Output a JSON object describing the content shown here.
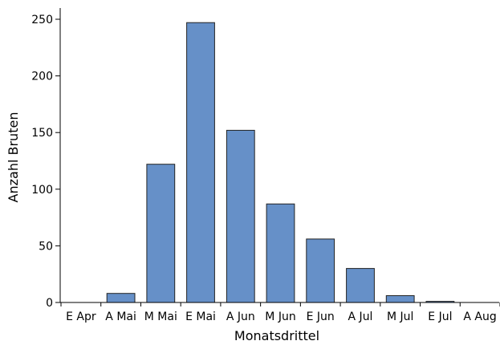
{
  "chart_data": {
    "type": "bar",
    "categories": [
      "E Apr",
      "A Mai",
      "M Mai",
      "E Mai",
      "A Jun",
      "M Jun",
      "E Jun",
      "A Jul",
      "M Jul",
      "E Jul",
      "A Aug"
    ],
    "values": [
      0,
      8,
      122,
      247,
      152,
      87,
      56,
      30,
      6,
      1,
      0
    ],
    "xlabel": "Monatsdrittel",
    "ylabel": "Anzahl Bruten",
    "ylim": [
      0,
      250
    ],
    "yticks": [
      0,
      50,
      100,
      150,
      200,
      250
    ],
    "grid": false,
    "colors": {
      "bar": "#6690c8",
      "bar_edge": "#222222"
    }
  }
}
